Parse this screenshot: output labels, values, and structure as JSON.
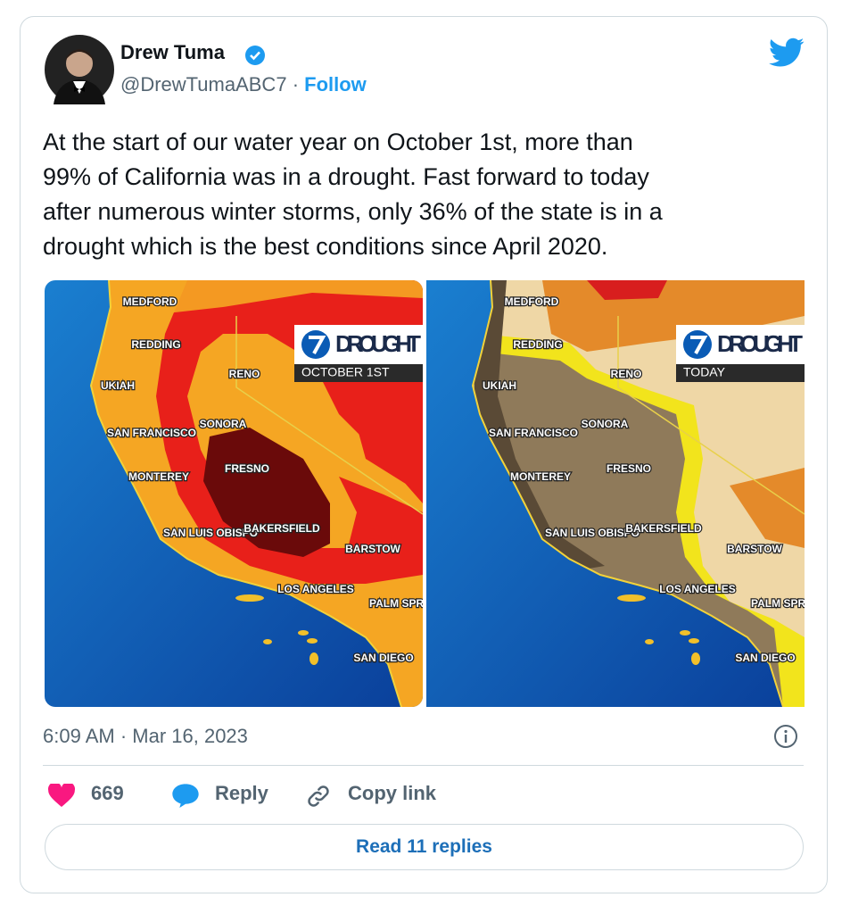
{
  "author": {
    "name": "Drew Tuma",
    "handle": "@DrewTumaABC7",
    "separator": "·",
    "follow": "Follow"
  },
  "tweet_lines": [
    "At the start of our water year on October 1st, more than",
    "99% of California was in a drought. Fast forward to today",
    "after numerous winter storms, only 36% of the state is in a",
    "drought which is the best conditions since April 2020."
  ],
  "maps": [
    {
      "badge_title": "DROUGHT",
      "badge_subtitle": "OCTOBER 1ST",
      "labels": [
        "MEDFORD",
        "REDDING",
        "RENO",
        "UKIAH",
        "SAN FRANCISCO",
        "SONORA",
        "MONTEREY",
        "FRESNO",
        "SAN LUIS OBISPO",
        "BAKERSFIELD",
        "BARSTOW",
        "LOS ANGELES",
        "PALM SPRI",
        "SAN DIEGO"
      ]
    },
    {
      "badge_title": "DROUGHT",
      "badge_subtitle": "TODAY",
      "labels": [
        "MEDFORD",
        "REDDING",
        "RENO",
        "UKIAH",
        "SAN FRANCISCO",
        "SONORA",
        "MONTEREY",
        "FRESNO",
        "SAN LUIS OBISPO",
        "BAKERSFIELD",
        "BARSTOW",
        "LOS ANGELES",
        "PALM SPRI",
        "SAN DIEGO"
      ]
    }
  ],
  "timestamp": "6:09 AM · Mar 16, 2023",
  "actions": {
    "likes": "669",
    "reply": "Reply",
    "copy_link": "Copy link"
  },
  "read_replies": "Read 11 replies"
}
